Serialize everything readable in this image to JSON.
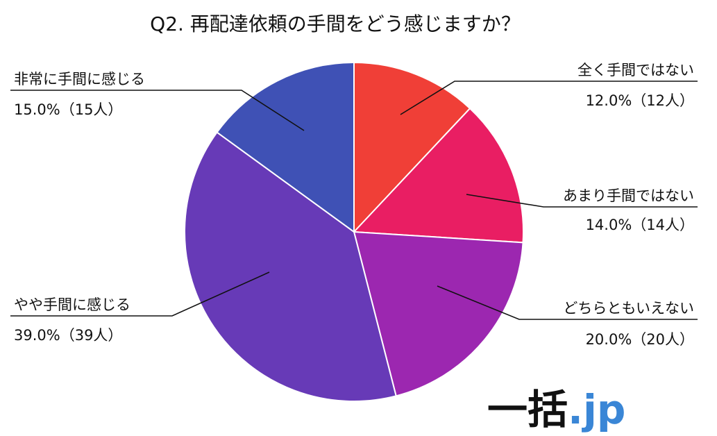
{
  "chart_data": {
    "type": "pie",
    "title": "Q2. 再配達依頼の手間をどう感じますか？",
    "slices": [
      {
        "label": "全く手間ではない",
        "value": 12.0,
        "value_text": "12.0%（12人）",
        "color": "#f03f37"
      },
      {
        "label": "あまり手間ではない",
        "value": 14.0,
        "value_text": "14.0%（14人）",
        "color": "#e91e63"
      },
      {
        "label": "どちらともいえない",
        "value": 20.0,
        "value_text": "20.0%（20人）",
        "color": "#9c27b0"
      },
      {
        "label": "やや手間に感じる",
        "value": 39.0,
        "value_text": "39.0%（39人）",
        "color": "#673ab7"
      },
      {
        "label": "非常に手間に感じる",
        "value": 15.0,
        "value_text": "15.0%（15人）",
        "color": "#3f51b5"
      }
    ],
    "start": "12 o'clock",
    "direction": "clockwise",
    "legend": "none"
  },
  "logo": {
    "main": "一括",
    "suffix": ".jp"
  }
}
